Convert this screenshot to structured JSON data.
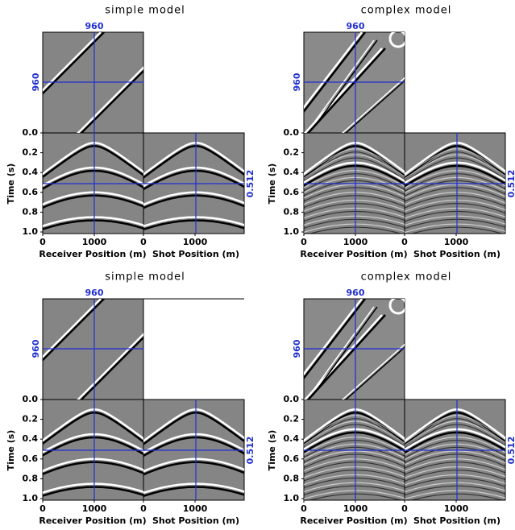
{
  "panels": [
    {
      "title": "simple model",
      "crosshair": {
        "top": "960",
        "left": "960",
        "right": "0.512"
      }
    },
    {
      "title": "complex model",
      "crosshair": {
        "top": "960",
        "left": "960",
        "right": "0.512"
      }
    },
    {
      "title": "simple model",
      "crosshair": {
        "top": "960",
        "left": "960",
        "right": "0.512"
      }
    },
    {
      "title": "complex model",
      "crosshair": {
        "top": "960",
        "left": "960",
        "right": "0.512"
      }
    }
  ],
  "axes": {
    "y_label": "Time (s)",
    "yticks": [
      "0.0",
      "0.2",
      "0.4",
      "0.6",
      "0.8",
      "1.0"
    ],
    "receiver_label": "Receiver Position (m)",
    "receiver_ticks": [
      "0",
      "1000"
    ],
    "shot_label": "Shot Position (m)",
    "shot_ticks": [
      "0",
      "1000"
    ]
  }
}
